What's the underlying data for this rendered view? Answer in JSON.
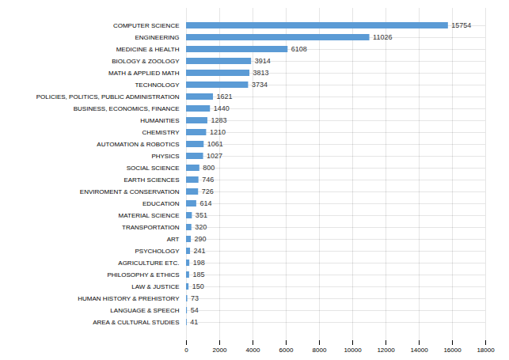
{
  "chart_data": {
    "type": "bar",
    "orientation": "horizontal",
    "categories": [
      "COMPUTER SCIENCE",
      "ENGINEERING",
      "MEDICINE & HEALTH",
      "BIOLOGY & ZOOLOGY",
      "MATH & APPLIED MATH",
      "TECHNOLOGY",
      "POLICIES, POLITICS, PUBLIC ADMINISTRATION",
      "BUSINESS, ECONOMICS, FINANCE",
      "HUMANITIES",
      "CHEMISTRY",
      "AUTOMATION & ROBOTICS",
      "PHYSICS",
      "SOCIAL SCIENCE",
      "EARTH SCIENCES",
      "ENVIROMENT & CONSERVATION",
      "EDUCATION",
      "MATERIAL SCIENCE",
      "TRANSPORTATION",
      "ART",
      "PSYCHOLOGY",
      "AGRICULTURE ETC.",
      "PHILOSOPHY & ETHICS",
      "LAW & JUSTICE",
      "HUMAN HISTORY & PREHISTORY",
      "LANGUAGE & SPEECH",
      "AREA & CULTURAL STUDIES"
    ],
    "values": [
      15754,
      11026,
      6108,
      3914,
      3813,
      3734,
      1621,
      1440,
      1283,
      1210,
      1061,
      1027,
      800,
      746,
      726,
      614,
      351,
      320,
      290,
      241,
      198,
      185,
      150,
      73,
      54,
      41
    ],
    "color": "#5B9BD5",
    "xlim": [
      0,
      18000
    ],
    "xticks": [
      0,
      2000,
      4000,
      6000,
      8000,
      10000,
      12000,
      14000,
      16000,
      18000
    ],
    "grid": true,
    "data_labels": true
  }
}
